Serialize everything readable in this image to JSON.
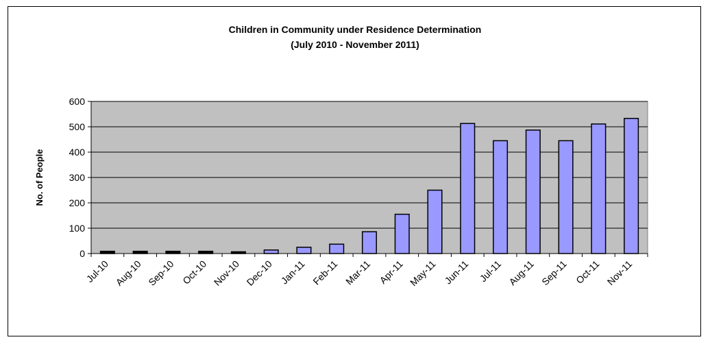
{
  "chart_data": {
    "type": "bar",
    "title": "Children in Community under Residence Determination",
    "subtitle": "(July 2010 - November 2011)",
    "xlabel": "",
    "ylabel": "No. of People",
    "ylim": [
      0,
      600
    ],
    "yticks": [
      "0",
      "100",
      "200",
      "300",
      "400",
      "500",
      "600"
    ],
    "grid": true,
    "legend": "none",
    "categories": [
      "Jul-10",
      "Aug-10",
      "Sep-10",
      "Oct-10",
      "Nov-10",
      "Dec-10",
      "Jan-11",
      "Feb-11",
      "Mar-11",
      "Apr-11",
      "May-11",
      "Jun-11",
      "Jul-11",
      "Aug-11",
      "Sep-11",
      "Oct-11",
      "Nov-11"
    ],
    "values": [
      9,
      9,
      9,
      9,
      7,
      14,
      25,
      37,
      86,
      155,
      250,
      513,
      445,
      487,
      445,
      511,
      533
    ],
    "colors": {
      "plot_background": "#c0c0c0",
      "bar_fill": "#9999ff",
      "bar_small_fill": "#000000",
      "bar_stroke": "#000000"
    }
  }
}
